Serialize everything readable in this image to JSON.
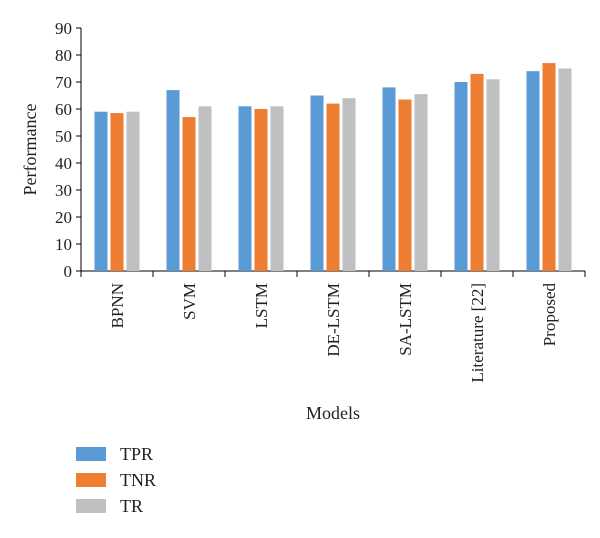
{
  "chart_data": {
    "type": "bar",
    "title": "",
    "xlabel": "Models",
    "ylabel": "Performance",
    "ylim": [
      0,
      90
    ],
    "yticks": [
      0,
      10,
      20,
      30,
      40,
      50,
      60,
      70,
      80,
      90
    ],
    "grid": false,
    "legend_position": "bottom-left",
    "categories": [
      "BPNN",
      "SVM",
      "LSTM",
      "DE-LSTM",
      "SA-LSTM",
      "Literature [22]",
      "Proposed"
    ],
    "series": [
      {
        "name": "TPR",
        "color": "#5B9BD5",
        "values": [
          59,
          67,
          61,
          65,
          68,
          70,
          74
        ]
      },
      {
        "name": "TNR",
        "color": "#ED7D31",
        "values": [
          58.5,
          57,
          60,
          62,
          63.5,
          73,
          77
        ]
      },
      {
        "name": "TR",
        "color": "#BFBFBF",
        "values": [
          59,
          61,
          61,
          64,
          65.5,
          71,
          75
        ]
      }
    ]
  }
}
